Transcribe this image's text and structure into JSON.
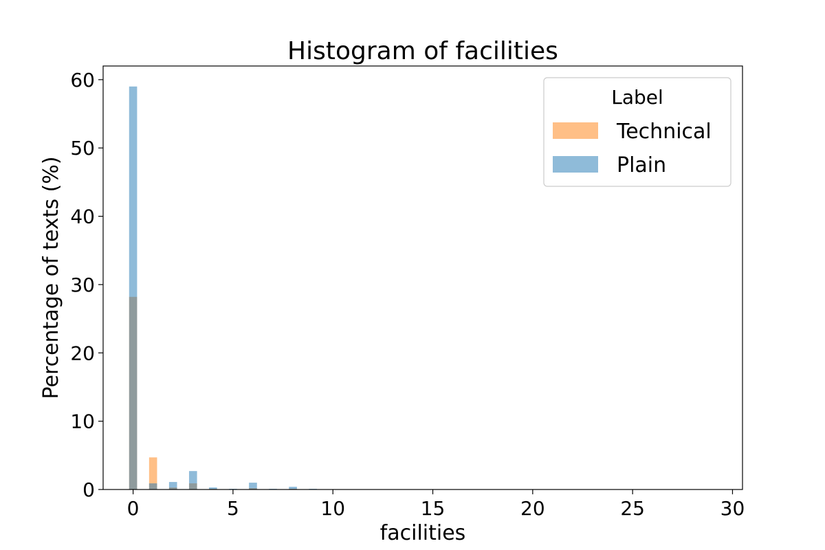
{
  "chart_data": {
    "type": "bar",
    "title": "Histogram of facilities",
    "xlabel": "facilities",
    "ylabel": "Percentage of texts (%)",
    "xlim": [
      -1.5,
      30.5
    ],
    "ylim": [
      0,
      62
    ],
    "xticks": [
      0,
      5,
      10,
      15,
      20,
      25,
      30
    ],
    "yticks": [
      0,
      10,
      20,
      30,
      40,
      50,
      60
    ],
    "bin_width": 0.4,
    "grid": false,
    "legend": {
      "title": "Label",
      "placement": "top-right"
    },
    "series": [
      {
        "name": "Technical",
        "color": "#ff7f0e",
        "x": [
          0,
          1,
          2,
          3,
          4,
          5,
          6,
          7,
          8,
          9
        ],
        "values": [
          28.2,
          4.7,
          0.3,
          0.9,
          0.1,
          0.05,
          0.2,
          0.05,
          0.1,
          0.05
        ]
      },
      {
        "name": "Plain",
        "color": "#1f77b4",
        "x": [
          0,
          1,
          2,
          3,
          4,
          5,
          6,
          7,
          8,
          9
        ],
        "values": [
          59.0,
          0.9,
          1.1,
          2.7,
          0.3,
          0.1,
          1.0,
          0.1,
          0.4,
          0.1
        ]
      }
    ]
  }
}
